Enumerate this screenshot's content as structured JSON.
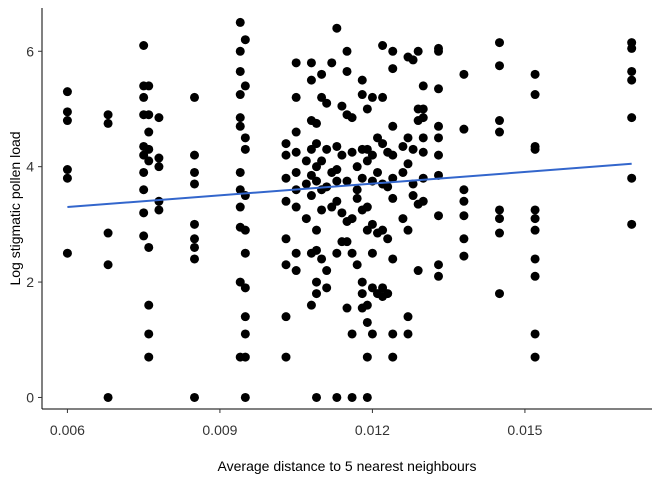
{
  "chart_data": {
    "type": "scatter",
    "title": "",
    "xlabel": "Average distance to 5 nearest neighbours",
    "ylabel": "Log stigmatic pollen load",
    "xlim": [
      0.0055,
      0.0175
    ],
    "ylim": [
      -0.2,
      6.75
    ],
    "x_ticks": [
      0.006,
      0.009,
      0.012,
      0.015
    ],
    "x_tick_labels": [
      "0.006",
      "0.009",
      "0.012",
      "0.015"
    ],
    "y_ticks": [
      0,
      2,
      4,
      6
    ],
    "y_tick_labels": [
      "0",
      "2",
      "4",
      "6"
    ],
    "grid": false,
    "legend": "none",
    "point_color": "#000000",
    "trend_color": "#3366cc",
    "trend_line": {
      "x": [
        0.006,
        0.0171
      ],
      "y": [
        3.3,
        4.05
      ]
    },
    "points": [
      [
        0.006,
        5.3
      ],
      [
        0.006,
        4.95
      ],
      [
        0.006,
        4.8
      ],
      [
        0.006,
        3.95
      ],
      [
        0.006,
        3.8
      ],
      [
        0.006,
        2.5
      ],
      [
        0.0068,
        4.9
      ],
      [
        0.0068,
        4.75
      ],
      [
        0.0068,
        2.85
      ],
      [
        0.0068,
        2.3
      ],
      [
        0.0068,
        0
      ],
      [
        0.0075,
        6.1
      ],
      [
        0.0075,
        5.4
      ],
      [
        0.0075,
        5.2
      ],
      [
        0.0075,
        4.9
      ],
      [
        0.0075,
        4.35
      ],
      [
        0.0075,
        4.2
      ],
      [
        0.0075,
        3.9
      ],
      [
        0.0075,
        3.6
      ],
      [
        0.0075,
        3.2
      ],
      [
        0.0075,
        2.8
      ],
      [
        0.0076,
        5.4
      ],
      [
        0.0076,
        4.9
      ],
      [
        0.0076,
        4.6
      ],
      [
        0.0076,
        4.3
      ],
      [
        0.0076,
        4.1
      ],
      [
        0.0076,
        2.6
      ],
      [
        0.0076,
        1.6
      ],
      [
        0.0076,
        1.1
      ],
      [
        0.0076,
        0.7
      ],
      [
        0.0078,
        4.85
      ],
      [
        0.0078,
        4.15
      ],
      [
        0.0078,
        4.0
      ],
      [
        0.0078,
        3.4
      ],
      [
        0.0078,
        3.25
      ],
      [
        0.0085,
        5.2
      ],
      [
        0.0085,
        4.2
      ],
      [
        0.0085,
        3.9
      ],
      [
        0.0085,
        3.7
      ],
      [
        0.0085,
        3.0
      ],
      [
        0.0085,
        2.75
      ],
      [
        0.0085,
        2.6
      ],
      [
        0.0085,
        2.4
      ],
      [
        0.0085,
        0
      ],
      [
        0.0094,
        6.5
      ],
      [
        0.0094,
        6.0
      ],
      [
        0.0094,
        5.65
      ],
      [
        0.0094,
        5.25
      ],
      [
        0.0094,
        4.85
      ],
      [
        0.0094,
        4.7
      ],
      [
        0.0094,
        3.9
      ],
      [
        0.0094,
        3.6
      ],
      [
        0.0094,
        3.3
      ],
      [
        0.0094,
        2.95
      ],
      [
        0.0094,
        2.0
      ],
      [
        0.0094,
        0.7
      ],
      [
        0.0095,
        6.2
      ],
      [
        0.0095,
        5.4
      ],
      [
        0.0095,
        4.5
      ],
      [
        0.0095,
        4.3
      ],
      [
        0.0095,
        3.5
      ],
      [
        0.0095,
        2.9
      ],
      [
        0.0095,
        2.5
      ],
      [
        0.0095,
        1.9
      ],
      [
        0.0095,
        1.4
      ],
      [
        0.0095,
        1.1
      ],
      [
        0.0095,
        0.7
      ],
      [
        0.0095,
        0
      ],
      [
        0.0103,
        4.4
      ],
      [
        0.0103,
        4.2
      ],
      [
        0.0103,
        3.8
      ],
      [
        0.0103,
        3.4
      ],
      [
        0.0103,
        2.75
      ],
      [
        0.0103,
        2.3
      ],
      [
        0.0103,
        1.4
      ],
      [
        0.0103,
        0.7
      ],
      [
        0.0105,
        5.8
      ],
      [
        0.0105,
        5.2
      ],
      [
        0.0105,
        4.6
      ],
      [
        0.0105,
        4.25
      ],
      [
        0.0105,
        3.9
      ],
      [
        0.0105,
        3.6
      ],
      [
        0.0105,
        3.3
      ],
      [
        0.0105,
        2.5
      ],
      [
        0.0105,
        2.2
      ],
      [
        0.0107,
        4.1
      ],
      [
        0.0107,
        3.7
      ],
      [
        0.0107,
        3.1
      ],
      [
        0.0108,
        5.8
      ],
      [
        0.0108,
        5.5
      ],
      [
        0.0108,
        4.8
      ],
      [
        0.0108,
        4.3
      ],
      [
        0.0108,
        3.85
      ],
      [
        0.0108,
        3.5
      ],
      [
        0.0108,
        2.5
      ],
      [
        0.0108,
        1.6
      ],
      [
        0.0109,
        4.75
      ],
      [
        0.0109,
        4.4
      ],
      [
        0.0109,
        4.0
      ],
      [
        0.0109,
        3.75
      ],
      [
        0.0109,
        2.9
      ],
      [
        0.0109,
        2.55
      ],
      [
        0.0109,
        2.0
      ],
      [
        0.0109,
        1.8
      ],
      [
        0.0109,
        0
      ],
      [
        0.011,
        5.6
      ],
      [
        0.011,
        5.2
      ],
      [
        0.011,
        4.1
      ],
      [
        0.011,
        3.6
      ],
      [
        0.011,
        3.25
      ],
      [
        0.011,
        2.4
      ],
      [
        0.0111,
        5.1
      ],
      [
        0.0111,
        4.3
      ],
      [
        0.0111,
        3.65
      ],
      [
        0.0111,
        2.2
      ],
      [
        0.0111,
        1.9
      ],
      [
        0.0112,
        5.8
      ],
      [
        0.0112,
        3.9
      ],
      [
        0.0112,
        3.3
      ],
      [
        0.0113,
        6.4
      ],
      [
        0.0113,
        4.35
      ],
      [
        0.0113,
        3.95
      ],
      [
        0.0113,
        3.75
      ],
      [
        0.0113,
        3.4
      ],
      [
        0.0113,
        2.5
      ],
      [
        0.0113,
        0
      ],
      [
        0.0114,
        5.05
      ],
      [
        0.0114,
        4.2
      ],
      [
        0.0114,
        3.2
      ],
      [
        0.0114,
        2.7
      ],
      [
        0.0115,
        6.0
      ],
      [
        0.0115,
        5.65
      ],
      [
        0.0115,
        4.9
      ],
      [
        0.0115,
        3.75
      ],
      [
        0.0115,
        3.05
      ],
      [
        0.0115,
        2.7
      ],
      [
        0.0115,
        1.55
      ],
      [
        0.0116,
        4.85
      ],
      [
        0.0116,
        4.25
      ],
      [
        0.0116,
        3.1
      ],
      [
        0.0116,
        2.5
      ],
      [
        0.0116,
        1.1
      ],
      [
        0.0116,
        0
      ],
      [
        0.0117,
        4.0
      ],
      [
        0.0117,
        3.6
      ],
      [
        0.0117,
        3.45
      ],
      [
        0.0117,
        2.3
      ],
      [
        0.0118,
        5.5
      ],
      [
        0.0118,
        5.25
      ],
      [
        0.0118,
        4.3
      ],
      [
        0.0118,
        3.8
      ],
      [
        0.0118,
        3.25
      ],
      [
        0.0118,
        2.0
      ],
      [
        0.0118,
        1.8
      ],
      [
        0.0118,
        1.55
      ],
      [
        0.0119,
        5.0
      ],
      [
        0.0119,
        4.3
      ],
      [
        0.0119,
        4.1
      ],
      [
        0.0119,
        3.3
      ],
      [
        0.0119,
        2.9
      ],
      [
        0.0119,
        1.6
      ],
      [
        0.0119,
        1.3
      ],
      [
        0.0119,
        0.7
      ],
      [
        0.0119,
        0
      ],
      [
        0.012,
        5.2
      ],
      [
        0.012,
        4.2
      ],
      [
        0.012,
        3.75
      ],
      [
        0.012,
        3.0
      ],
      [
        0.012,
        2.5
      ],
      [
        0.012,
        1.9
      ],
      [
        0.012,
        1.1
      ],
      [
        0.0121,
        4.5
      ],
      [
        0.0121,
        3.9
      ],
      [
        0.0121,
        2.85
      ],
      [
        0.0121,
        1.8
      ],
      [
        0.0122,
        6.1
      ],
      [
        0.0122,
        5.2
      ],
      [
        0.0122,
        4.4
      ],
      [
        0.0122,
        3.7
      ],
      [
        0.0122,
        2.9
      ],
      [
        0.0122,
        1.9
      ],
      [
        0.0122,
        1.75
      ],
      [
        0.0123,
        4.25
      ],
      [
        0.0123,
        3.65
      ],
      [
        0.0123,
        2.75
      ],
      [
        0.0123,
        1.8
      ],
      [
        0.0124,
        6.0
      ],
      [
        0.0124,
        5.7
      ],
      [
        0.0124,
        4.7
      ],
      [
        0.0124,
        4.2
      ],
      [
        0.0124,
        3.8
      ],
      [
        0.0124,
        3.45
      ],
      [
        0.0124,
        2.4
      ],
      [
        0.0124,
        1.1
      ],
      [
        0.0124,
        0.7
      ],
      [
        0.0126,
        4.35
      ],
      [
        0.0126,
        3.9
      ],
      [
        0.0126,
        3.1
      ],
      [
        0.0127,
        5.9
      ],
      [
        0.0127,
        4.5
      ],
      [
        0.0127,
        4.05
      ],
      [
        0.0127,
        2.9
      ],
      [
        0.0127,
        1.4
      ],
      [
        0.0127,
        1.1
      ],
      [
        0.0128,
        5.85
      ],
      [
        0.0128,
        4.3
      ],
      [
        0.0128,
        3.7
      ],
      [
        0.0128,
        3.5
      ],
      [
        0.0129,
        6.0
      ],
      [
        0.0129,
        5.0
      ],
      [
        0.0129,
        4.8
      ],
      [
        0.0129,
        3.35
      ],
      [
        0.0129,
        2.2
      ],
      [
        0.013,
        5.4
      ],
      [
        0.013,
        5.0
      ],
      [
        0.013,
        4.85
      ],
      [
        0.013,
        4.5
      ],
      [
        0.013,
        4.25
      ],
      [
        0.013,
        3.8
      ],
      [
        0.013,
        3.4
      ],
      [
        0.0133,
        6.05
      ],
      [
        0.0133,
        6.0
      ],
      [
        0.0133,
        5.35
      ],
      [
        0.0133,
        4.7
      ],
      [
        0.0133,
        4.5
      ],
      [
        0.0133,
        4.2
      ],
      [
        0.0133,
        3.85
      ],
      [
        0.0133,
        3.15
      ],
      [
        0.0133,
        2.3
      ],
      [
        0.0133,
        2.1
      ],
      [
        0.0138,
        5.6
      ],
      [
        0.0138,
        4.65
      ],
      [
        0.0138,
        3.6
      ],
      [
        0.0138,
        3.4
      ],
      [
        0.0138,
        3.15
      ],
      [
        0.0138,
        2.75
      ],
      [
        0.0138,
        2.45
      ],
      [
        0.0145,
        6.15
      ],
      [
        0.0145,
        5.75
      ],
      [
        0.0145,
        4.8
      ],
      [
        0.0145,
        4.6
      ],
      [
        0.0145,
        3.25
      ],
      [
        0.0145,
        3.1
      ],
      [
        0.0145,
        2.85
      ],
      [
        0.0145,
        1.8
      ],
      [
        0.0152,
        5.6
      ],
      [
        0.0152,
        5.25
      ],
      [
        0.0152,
        4.35
      ],
      [
        0.0152,
        4.3
      ],
      [
        0.0152,
        3.25
      ],
      [
        0.0152,
        3.1
      ],
      [
        0.0152,
        2.9
      ],
      [
        0.0152,
        2.4
      ],
      [
        0.0152,
        2.1
      ],
      [
        0.0152,
        1.1
      ],
      [
        0.0152,
        0.7
      ],
      [
        0.0171,
        6.15
      ],
      [
        0.0171,
        6.05
      ],
      [
        0.0171,
        5.65
      ],
      [
        0.0171,
        5.5
      ],
      [
        0.0171,
        4.85
      ],
      [
        0.0171,
        3.8
      ],
      [
        0.0171,
        3.0
      ]
    ]
  }
}
